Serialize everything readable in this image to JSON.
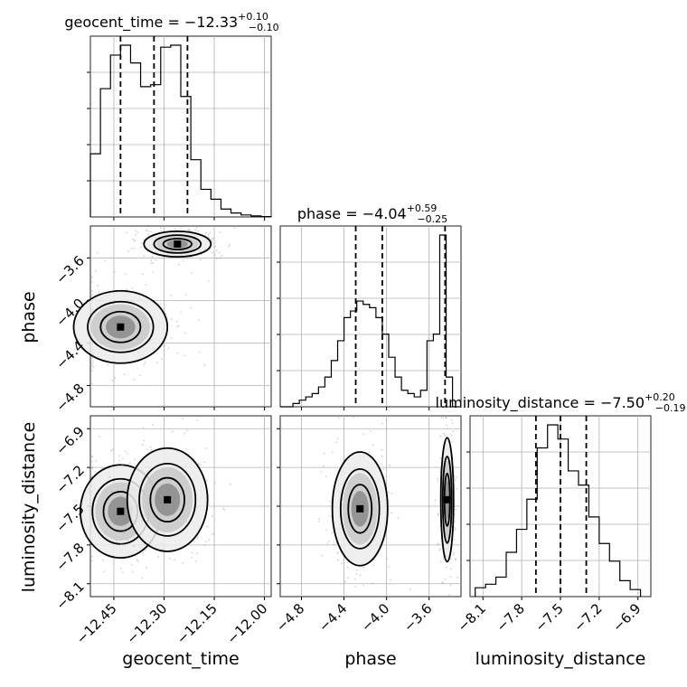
{
  "chart_data": [
    {
      "type": "histogram",
      "parameter": "geocent_time",
      "title_html": [
        "geocent_time = −12.33",
        "+0.10",
        "−0.10"
      ],
      "grid": true,
      "x_range": [
        -12.52,
        -11.98
      ],
      "xticks": [
        -12.45,
        -12.3,
        -12.15,
        -12.0
      ],
      "xtick_labels": [
        "−12.45",
        "−12.30",
        "−12.15",
        "−12.00"
      ],
      "quantile_lines": [
        -12.43,
        -12.33,
        -12.23
      ],
      "bin_edges": [
        -12.52,
        -12.49,
        -12.46,
        -12.43,
        -12.4,
        -12.37,
        -12.34,
        -12.31,
        -12.28,
        -12.25,
        -12.22,
        -12.19,
        -12.16,
        -12.13,
        -12.1,
        -12.07,
        -12.04,
        -12.01,
        -11.98
      ],
      "bin_heights": [
        0.32,
        0.65,
        0.82,
        0.87,
        0.78,
        0.66,
        0.67,
        0.86,
        0.87,
        0.61,
        0.29,
        0.14,
        0.09,
        0.04,
        0.02,
        0.01,
        0.005,
        0.002
      ]
    },
    {
      "type": "histogram",
      "parameter": "phase",
      "title_html": [
        "phase = −4.04",
        "+0.59",
        "−0.25"
      ],
      "grid": true,
      "x_range": [
        -5.0,
        -3.3
      ],
      "xticks": [
        -4.8,
        -4.4,
        -4.0,
        -3.6
      ],
      "xtick_labels": [
        "−4.8",
        "−4.4",
        "−4.0",
        "−3.6"
      ],
      "quantile_lines": [
        -4.29,
        -4.04,
        -3.45
      ],
      "bin_edges": [
        -5.0,
        -4.94,
        -4.88,
        -4.82,
        -4.76,
        -4.7,
        -4.64,
        -4.58,
        -4.52,
        -4.46,
        -4.4,
        -4.34,
        -4.28,
        -4.22,
        -4.16,
        -4.1,
        -4.04,
        -3.98,
        -3.92,
        -3.86,
        -3.8,
        -3.74,
        -3.68,
        -3.62,
        -3.56,
        -3.5,
        -3.44,
        -3.38,
        -3.32
      ],
      "bin_heights": [
        0.0,
        0.0,
        0.01,
        0.02,
        0.03,
        0.04,
        0.06,
        0.09,
        0.14,
        0.2,
        0.27,
        0.29,
        0.32,
        0.31,
        0.3,
        0.27,
        0.22,
        0.15,
        0.09,
        0.05,
        0.04,
        0.03,
        0.05,
        0.2,
        0.22,
        0.52,
        0.09,
        0.0
      ]
    },
    {
      "type": "histogram",
      "parameter": "luminosity_distance",
      "title_html": [
        "luminosity_distance = −7.50",
        "+0.20",
        "−0.19"
      ],
      "grid": true,
      "x_range": [
        -8.2,
        -6.8
      ],
      "xticks": [
        -8.1,
        -7.8,
        -7.5,
        -7.2,
        -6.9
      ],
      "xtick_labels": [
        "−8.1",
        "−7.8",
        "−7.5",
        "−7.2",
        "−6.9"
      ],
      "quantile_lines": [
        -7.69,
        -7.5,
        -7.3
      ],
      "bin_edges": [
        -8.16,
        -8.08,
        -8.0,
        -7.92,
        -7.84,
        -7.76,
        -7.68,
        -7.6,
        -7.52,
        -7.44,
        -7.36,
        -7.28,
        -7.2,
        -7.12,
        -7.04,
        -6.96,
        -6.88
      ],
      "bin_heights": [
        0.05,
        0.07,
        0.11,
        0.25,
        0.38,
        0.55,
        0.84,
        0.97,
        0.89,
        0.71,
        0.63,
        0.45,
        0.3,
        0.2,
        0.09,
        0.04
      ]
    },
    {
      "type": "contour",
      "x_parameter": "geocent_time",
      "y_parameter": "phase",
      "x_range": [
        -12.52,
        -11.98
      ],
      "y_range": [
        -5.0,
        -3.3
      ],
      "ylabel": "phase",
      "yticks": [
        -4.8,
        -4.4,
        -4.0,
        -3.6
      ],
      "ytick_labels": [
        "−4.8",
        "−4.4",
        "−4.0",
        "−3.6"
      ],
      "modes": [
        {
          "center": [
            -12.26,
            -3.47
          ],
          "spread": [
            0.05,
            0.06
          ],
          "levels": 3
        },
        {
          "center": [
            -12.43,
            -4.25
          ],
          "spread": [
            0.07,
            0.17
          ],
          "levels": 3
        }
      ]
    },
    {
      "type": "contour",
      "x_parameter": "geocent_time",
      "y_parameter": "luminosity_distance",
      "x_range": [
        -12.52,
        -11.98
      ],
      "y_range": [
        -8.2,
        -6.8
      ],
      "xlabel": "geocent_time",
      "ylabel": "luminosity_distance",
      "xticks": [
        -12.45,
        -12.3,
        -12.15,
        -12.0
      ],
      "xtick_labels": [
        "−12.45",
        "−12.30",
        "−12.15",
        "−12.00"
      ],
      "yticks": [
        -8.1,
        -7.8,
        -7.5,
        -7.2,
        -6.9
      ],
      "ytick_labels": [
        "−8.1",
        "−7.8",
        "−7.5",
        "−7.2",
        "−6.9"
      ],
      "modes": [
        {
          "center": [
            -12.43,
            -7.54
          ],
          "spread": [
            0.06,
            0.18
          ],
          "levels": 3
        },
        {
          "center": [
            -12.29,
            -7.45
          ],
          "spread": [
            0.06,
            0.2
          ],
          "levels": 3
        }
      ]
    },
    {
      "type": "contour",
      "x_parameter": "phase",
      "y_parameter": "luminosity_distance",
      "x_range": [
        -5.0,
        -3.3
      ],
      "y_range": [
        -8.2,
        -6.8
      ],
      "xlabel": "phase",
      "xticks": [
        -4.8,
        -4.4,
        -4.0,
        -3.6
      ],
      "xtick_labels": [
        "−4.8",
        "−4.4",
        "−4.0",
        "−3.6"
      ],
      "modes": [
        {
          "center": [
            -4.25,
            -7.52
          ],
          "spread": [
            0.13,
            0.22
          ],
          "levels": 3
        },
        {
          "center": [
            -3.43,
            -7.45
          ],
          "spread": [
            0.03,
            0.24
          ],
          "levels": 3
        }
      ]
    }
  ],
  "labels": {
    "xlabel_1": "geocent_time",
    "xlabel_2": "phase",
    "xlabel_3": "luminosity_distance",
    "ylabel_1": "phase",
    "ylabel_2": "luminosity_distance"
  }
}
